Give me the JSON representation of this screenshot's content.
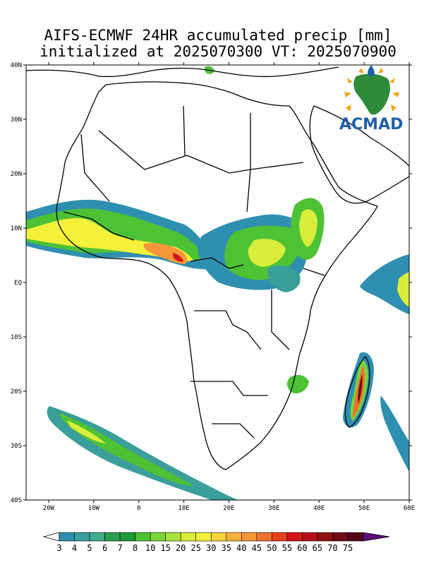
{
  "title": {
    "line1": "AIFS-ECMWF 24HR accumulated precip [mm]",
    "line2": "initialized at 2025070300 VT: 2025070900"
  },
  "axes": {
    "lat_labels": [
      "40N",
      "30N",
      "20N",
      "10N",
      "EQ",
      "10S",
      "20S",
      "30S",
      "40S"
    ],
    "lon_labels": [
      "20W",
      "10W",
      "0",
      "10E",
      "20E",
      "30E",
      "40E",
      "50E",
      "60E"
    ],
    "lat_range": [
      -40,
      40
    ],
    "lon_range": [
      -25,
      60
    ]
  },
  "colorbar": {
    "labels": [
      "3",
      "4",
      "5",
      "6",
      "7",
      "8",
      "10",
      "15",
      "20",
      "25",
      "30",
      "35",
      "40",
      "45",
      "50",
      "55",
      "60",
      "65",
      "70",
      "75"
    ],
    "colors": [
      "#2f8fb0",
      "#3a9e9a",
      "#40ab8a",
      "#2e9e4f",
      "#1e9a3a",
      "#4ec235",
      "#7bd63a",
      "#a8e23c",
      "#d8ee3a",
      "#f5f03a",
      "#f8d23a",
      "#f8b43a",
      "#f6963a",
      "#f0702e",
      "#e8401f",
      "#d4141a",
      "#b41116",
      "#921013",
      "#6e0c14",
      "#520a18",
      "#5a1078"
    ]
  },
  "logo": {
    "text": "ACMAD"
  },
  "precip_regions": [
    {
      "name": "west-africa-sahel-band",
      "level": "15-35"
    },
    {
      "name": "gulf-of-guinea-coast-max",
      "level": "35-55"
    },
    {
      "name": "central-africa-band",
      "level": "5-15"
    },
    {
      "name": "ethiopian-highlands",
      "level": "8-20"
    },
    {
      "name": "east-madagascar",
      "level": "10-50"
    },
    {
      "name": "south-atlantic-front",
      "level": "5-15"
    },
    {
      "name": "indian-ocean-east",
      "level": "8-15"
    }
  ]
}
